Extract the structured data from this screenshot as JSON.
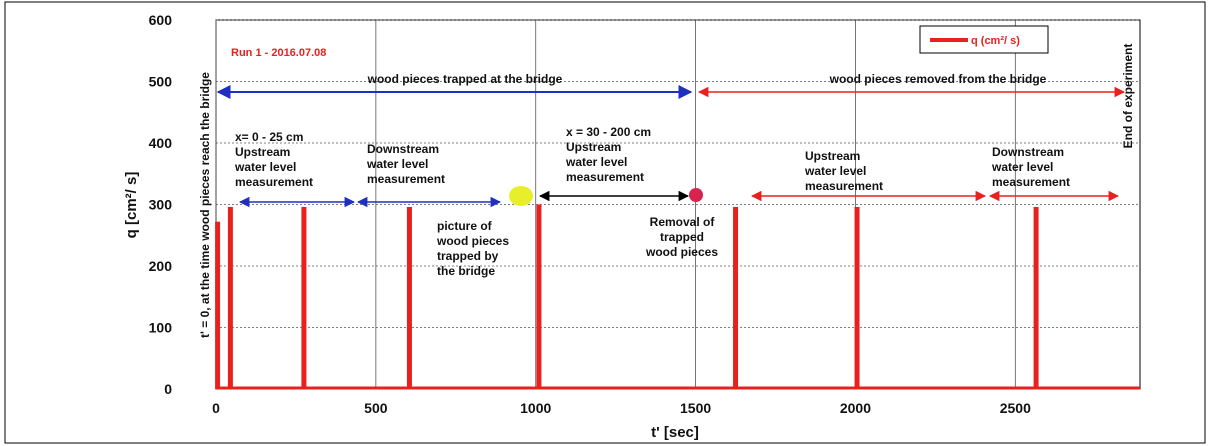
{
  "chart_data": {
    "type": "bar",
    "xlabel": "t' [sec]",
    "ylabel": "q [cm²/ s]",
    "x": [
      5,
      45,
      275,
      605,
      1010,
      1625,
      2005,
      2565
    ],
    "series": [
      {
        "name": "q (cm²/ s)",
        "color": "#e8201e",
        "values": [
          272,
          296,
          296,
          296,
          300,
          296,
          296,
          296
        ]
      }
    ],
    "xlim": [
      0,
      2890
    ],
    "ylim": [
      0,
      600
    ],
    "xticks": [
      0,
      500,
      1000,
      1500,
      2000,
      2500
    ],
    "yticks": [
      0,
      100,
      200,
      300,
      400,
      500,
      600
    ],
    "grid": true,
    "legend": "upper right",
    "annotations": [
      [
        "Run 1 - 2016.07.08"
      ],
      [
        "wood pieces trapped at the bridge"
      ],
      [
        "wood pieces removed from the bridge"
      ],
      [
        "x= 0 - 25 cm",
        "Upstream",
        "water level",
        "measurement"
      ],
      [
        "Downstream",
        "water level",
        "measurement"
      ],
      [
        "x = 30 - 200 cm",
        "Upstream",
        "water level",
        "measurement"
      ],
      [
        "picture of",
        "wood pieces",
        "trapped by",
        "the bridge"
      ],
      [
        "Removal of",
        "trapped",
        "wood pieces"
      ],
      [
        "Upstream",
        "water level",
        "measurement"
      ],
      [
        "Downstream",
        "water level",
        "measurement"
      ],
      [
        "t' = 0, at the time wood pieces reach the bridge"
      ],
      [
        "End of experiment"
      ]
    ]
  }
}
